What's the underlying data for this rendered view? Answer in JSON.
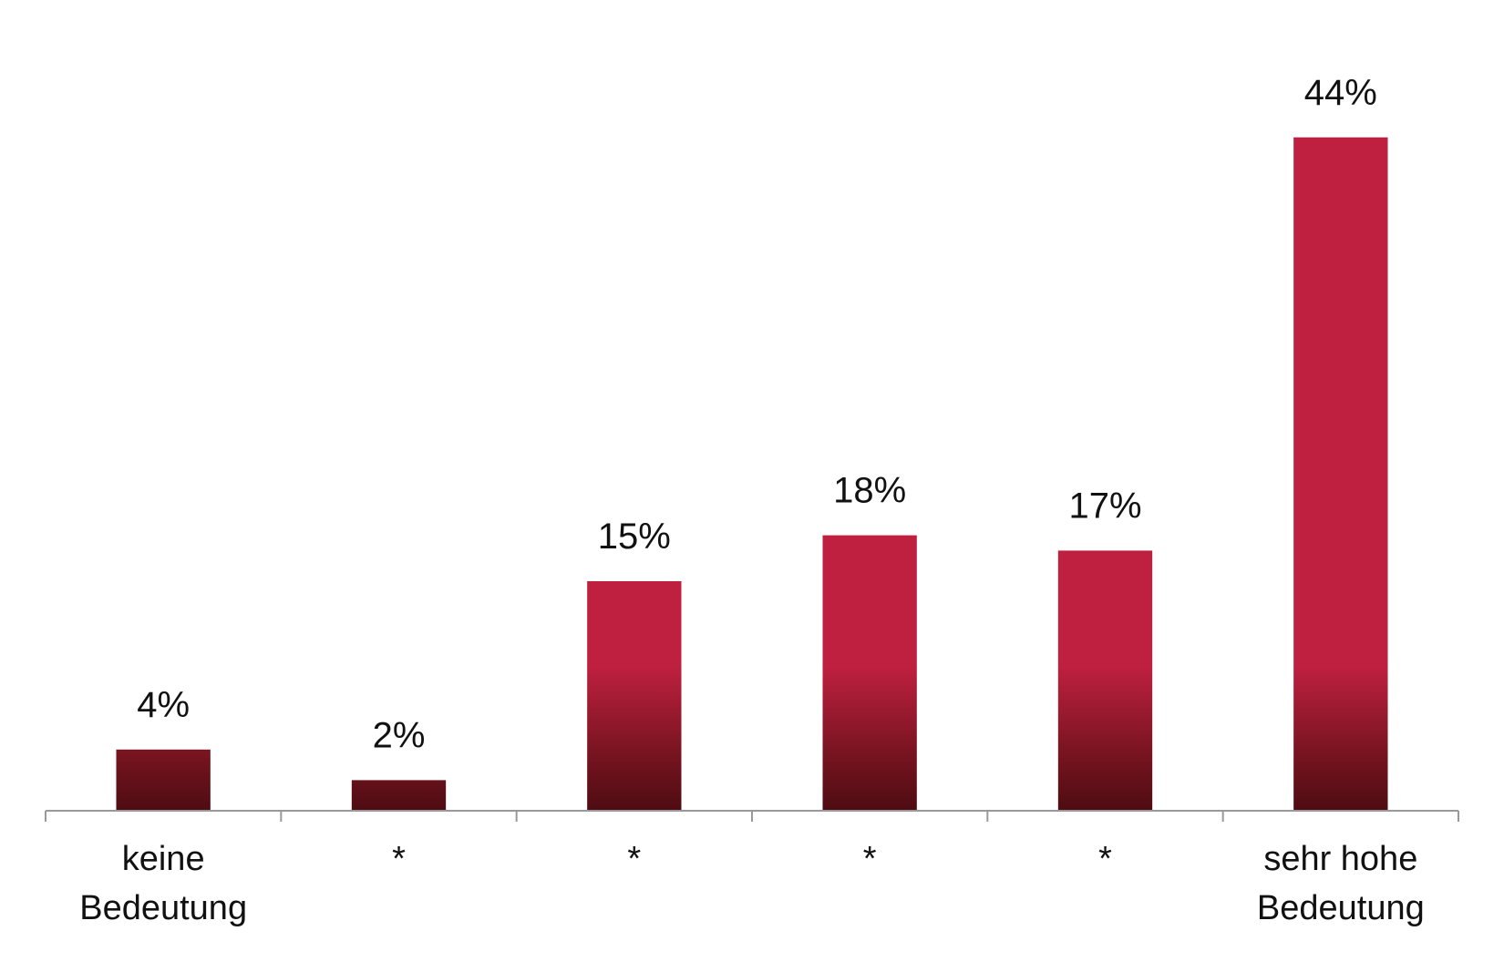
{
  "chart_data": {
    "type": "bar",
    "categories": [
      "keine Bedeutung",
      "*",
      "*",
      "*",
      "*",
      "sehr hohe Bedeutung"
    ],
    "values": [
      4,
      2,
      15,
      18,
      17,
      44
    ],
    "value_labels": [
      "4%",
      "2%",
      "15%",
      "18%",
      "17%",
      "44%"
    ],
    "color": "#c0203f",
    "ylim": [
      0,
      50
    ]
  }
}
